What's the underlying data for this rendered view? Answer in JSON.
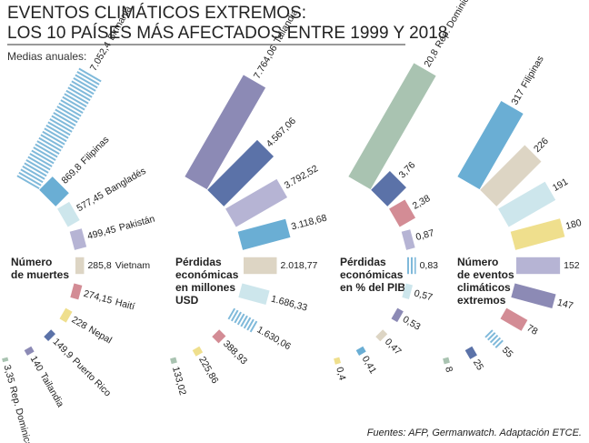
{
  "title": [
    "EVENTOS CLIMÁTICOS EXTREMOS:",
    "LOS 10 PAÍSES MÁS AFECTADOS ENTRE 1999 Y 2018"
  ],
  "subtitle": "Medias anuales:",
  "source": "Fuentes: AFP, Germanwatch. Adaptación ETCE.",
  "chart_data": [
    {
      "type": "radial-bar",
      "title": [
        "Número",
        "de muertes"
      ],
      "categories": [
        "Birmania",
        "Filipinas",
        "Bangladés",
        "Pakistán",
        "Vietnam",
        "Haití",
        "Nepal",
        "Puerto Rico",
        "Tailandia",
        "Rep. Dominicana"
      ],
      "values": [
        7052.4,
        869.8,
        577.45,
        499.45,
        285.8,
        274.15,
        228,
        149.9,
        140,
        3.35
      ],
      "value_labels": [
        "7.052,4",
        "869,8",
        "577,45",
        "499,45",
        "285,8",
        "274,15",
        "228",
        "149,9",
        "140",
        "3,35"
      ],
      "colors": [
        "#7fb9da",
        "#6aaed4",
        "#cde6ec",
        "#b6b4d4",
        "#ddd5c4",
        "#d38c95",
        "#efdf8d",
        "#5b72a8",
        "#8c8ab5",
        "#a9c3b1"
      ],
      "hatched": [
        true,
        false,
        false,
        false,
        false,
        false,
        false,
        false,
        false,
        false
      ]
    },
    {
      "type": "radial-bar",
      "title": [
        "Pérdidas",
        "económicas",
        "en millones",
        "USD"
      ],
      "categories": [
        "Tailandia",
        null,
        null,
        null,
        null,
        null,
        null,
        null,
        null,
        null
      ],
      "values": [
        7764.06,
        4567.06,
        3792.52,
        3118.68,
        2018.77,
        1686.33,
        1630.06,
        388.93,
        225.86,
        133.02
      ],
      "value_labels": [
        "7.764,06",
        "4.567,06",
        "3.792,52",
        "3.118,68",
        "2.018,77",
        "1.686,33",
        "1.630,06",
        "388,93",
        "225,86",
        "133,02"
      ],
      "colors": [
        "#8c8ab5",
        "#5b72a8",
        "#b6b4d4",
        "#6aaed4",
        "#ddd5c4",
        "#cde6ec",
        "#7fb9da",
        "#d38c95",
        "#efdf8d",
        "#a9c3b1"
      ],
      "hatched": [
        false,
        false,
        false,
        false,
        false,
        false,
        true,
        false,
        false,
        false
      ]
    },
    {
      "type": "radial-bar",
      "title": [
        "Pérdidas",
        "económicas",
        "en % del PIB"
      ],
      "categories": [
        "Rep. Dominicana",
        null,
        null,
        null,
        null,
        null,
        null,
        null,
        null,
        null
      ],
      "values": [
        20.8,
        3.76,
        2.38,
        0.87,
        0.83,
        0.57,
        0.53,
        0.47,
        0.41,
        0.4
      ],
      "value_labels": [
        "20,8",
        "3,76",
        "2,38",
        "0,87",
        "0,83",
        "0,57",
        "0,53",
        "0,47",
        "0,41",
        "0,4"
      ],
      "colors": [
        "#a9c3b1",
        "#5b72a8",
        "#d38c95",
        "#b6b4d4",
        "#7fb9da",
        "#cde6ec",
        "#8c8ab5",
        "#ddd5c4",
        "#6aaed4",
        "#efdf8d"
      ],
      "hatched": [
        false,
        false,
        false,
        false,
        true,
        false,
        false,
        false,
        false,
        false
      ]
    },
    {
      "type": "radial-bar",
      "title": [
        "Número",
        "de eventos",
        "climáticos",
        "extremos"
      ],
      "categories": [
        "Filipinas",
        null,
        null,
        null,
        null,
        null,
        null,
        null,
        null,
        null
      ],
      "values": [
        317,
        226,
        191,
        180,
        152,
        147,
        78,
        55,
        25,
        8
      ],
      "colors": [
        "#6aaed4",
        "#ddd5c4",
        "#cde6ec",
        "#efdf8d",
        "#b6b4d4",
        "#8c8ab5",
        "#d38c95",
        "#7fb9da",
        "#5b72a8",
        "#a9c3b1"
      ],
      "hatched": [
        false,
        false,
        false,
        false,
        false,
        false,
        false,
        true,
        false,
        false
      ]
    }
  ]
}
